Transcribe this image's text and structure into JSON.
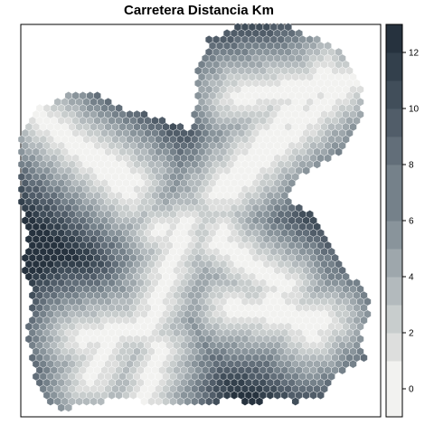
{
  "chart_data": {
    "type": "heatmap",
    "title": "Carretera Distancia Km",
    "cell_shape": "hexagon",
    "palette": [
      "#f2f2f0",
      "#dddedd",
      "#c8cdcd",
      "#b3babd",
      "#9ea7ac",
      "#89949b",
      "#75818a",
      "#626e79",
      "#515d69",
      "#414e5a",
      "#33404c",
      "#26323e"
    ],
    "class_breaks": [
      -1,
      0,
      1,
      2,
      3,
      4,
      5,
      6,
      7,
      8,
      9,
      10,
      11,
      12,
      13
    ],
    "legend": {
      "position": "right",
      "ticks": [
        "0",
        "2",
        "4",
        "6",
        "8",
        "10",
        "12"
      ],
      "tick_values": [
        0,
        2,
        4,
        6,
        8,
        10,
        12
      ],
      "range": [
        -1,
        13
      ]
    },
    "grid": false
  }
}
